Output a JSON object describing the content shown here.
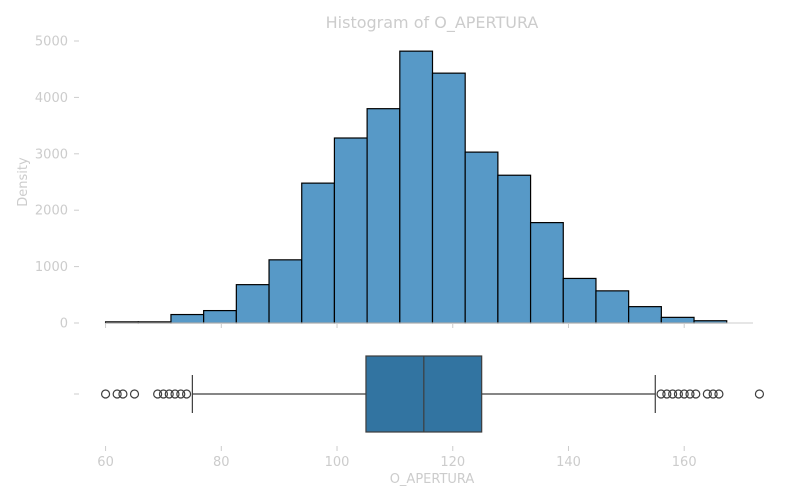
{
  "chart_data": [
    {
      "type": "histogram",
      "title": "Histogram of O_APERTURA",
      "xlabel": "",
      "ylabel": "Density",
      "xlim": [
        58,
        175
      ],
      "ylim": [
        0,
        5000
      ],
      "yticks": [
        0,
        1000,
        2000,
        3000,
        4000,
        5000
      ],
      "grid": false,
      "bins": [
        {
          "start": 60.0,
          "end": 65.65,
          "count": 20
        },
        {
          "start": 65.65,
          "end": 71.3,
          "count": 20
        },
        {
          "start": 71.3,
          "end": 76.95,
          "count": 150
        },
        {
          "start": 76.95,
          "end": 82.6,
          "count": 220
        },
        {
          "start": 82.6,
          "end": 88.25,
          "count": 680
        },
        {
          "start": 88.25,
          "end": 93.9,
          "count": 1120
        },
        {
          "start": 93.9,
          "end": 99.55,
          "count": 2480
        },
        {
          "start": 99.55,
          "end": 105.2,
          "count": 3280
        },
        {
          "start": 105.2,
          "end": 110.85,
          "count": 3800
        },
        {
          "start": 110.85,
          "end": 116.5,
          "count": 4820
        },
        {
          "start": 116.5,
          "end": 122.15,
          "count": 4430
        },
        {
          "start": 122.15,
          "end": 127.8,
          "count": 3030
        },
        {
          "start": 127.8,
          "end": 133.45,
          "count": 2620
        },
        {
          "start": 133.45,
          "end": 139.1,
          "count": 1780
        },
        {
          "start": 139.1,
          "end": 144.75,
          "count": 790
        },
        {
          "start": 144.75,
          "end": 150.4,
          "count": 570
        },
        {
          "start": 150.4,
          "end": 156.05,
          "count": 290
        },
        {
          "start": 156.05,
          "end": 161.7,
          "count": 100
        },
        {
          "start": 161.7,
          "end": 167.35,
          "count": 40
        }
      ],
      "colors": {
        "fill": "#5799c7",
        "edge": "#000000"
      }
    },
    {
      "type": "boxplot",
      "xlabel": "O_APERTURA",
      "xlim": [
        58,
        175
      ],
      "xticks": [
        60,
        80,
        100,
        120,
        140,
        160
      ],
      "ytick_label": "",
      "whisker_low": 75,
      "q1": 105,
      "median": 115,
      "q3": 125,
      "whisker_high": 155,
      "outliers": [
        60,
        62,
        63,
        65,
        69,
        70,
        71,
        72,
        73,
        74,
        156,
        157,
        158,
        159,
        160,
        161,
        162,
        164,
        165,
        166,
        173
      ],
      "colors": {
        "fill": "#3274a1",
        "line": "#3d3d3d"
      }
    }
  ]
}
